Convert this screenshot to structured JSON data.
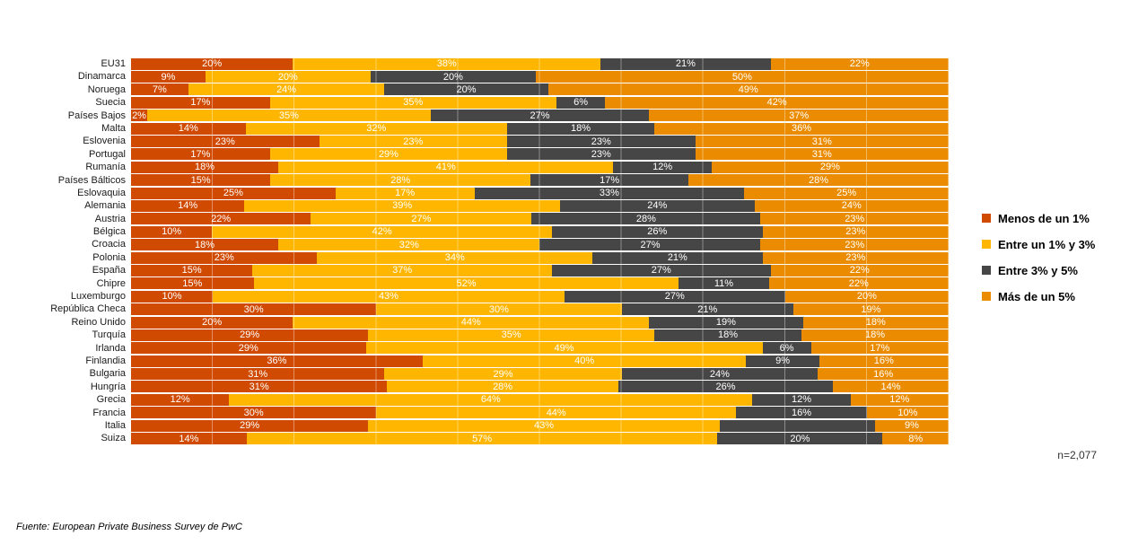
{
  "chart_data": {
    "type": "bar",
    "orientation": "horizontal-stacked-100",
    "title": "",
    "xlabel": "",
    "ylabel": "",
    "grid": "faint vertical gridlines every 10%",
    "legend_position": "right",
    "series_names": [
      "Menos de un 1%",
      "Entre un 1% y 3%",
      "Entre 3% y 5%",
      "Más de un 5%"
    ],
    "colors": [
      "#D04A02",
      "#FFB600",
      "#464646",
      "#EB8C00"
    ],
    "rows": [
      {
        "country": "EU31",
        "values": [
          20,
          38,
          21,
          22
        ]
      },
      {
        "country": "Dinamarca",
        "values": [
          9,
          20,
          20,
          50
        ]
      },
      {
        "country": "Noruega",
        "values": [
          7,
          24,
          20,
          49
        ]
      },
      {
        "country": "Suecia",
        "values": [
          17,
          35,
          6,
          42
        ]
      },
      {
        "country": "Países Bajos",
        "values": [
          2,
          35,
          27,
          37
        ]
      },
      {
        "country": "Malta",
        "values": [
          14,
          32,
          18,
          36
        ]
      },
      {
        "country": "Eslovenia",
        "values": [
          23,
          23,
          23,
          31
        ]
      },
      {
        "country": "Portugal",
        "values": [
          17,
          29,
          23,
          31
        ]
      },
      {
        "country": "Rumanía",
        "values": [
          18,
          41,
          12,
          29
        ]
      },
      {
        "country": "Países Bálticos",
        "values": [
          15,
          28,
          17,
          28
        ]
      },
      {
        "country": "Eslovaquia",
        "values": [
          25,
          17,
          33,
          25
        ]
      },
      {
        "country": "Alemania",
        "values": [
          14,
          39,
          24,
          24
        ]
      },
      {
        "country": "Austria",
        "values": [
          22,
          27,
          28,
          23
        ]
      },
      {
        "country": "Bélgica",
        "values": [
          10,
          42,
          26,
          23
        ]
      },
      {
        "country": "Croacia",
        "values": [
          18,
          32,
          27,
          23
        ]
      },
      {
        "country": "Polonia",
        "values": [
          23,
          34,
          21,
          23
        ]
      },
      {
        "country": "España",
        "values": [
          15,
          37,
          27,
          22
        ]
      },
      {
        "country": "Chipre",
        "values": [
          15,
          52,
          11,
          22
        ]
      },
      {
        "country": "Luxemburgo",
        "values": [
          10,
          43,
          27,
          20
        ]
      },
      {
        "country": "República Checa",
        "values": [
          30,
          30,
          21,
          19
        ]
      },
      {
        "country": "Reino Unido",
        "values": [
          20,
          44,
          19,
          18
        ]
      },
      {
        "country": "Turquía",
        "values": [
          29,
          35,
          18,
          18
        ]
      },
      {
        "country": "Irlanda",
        "values": [
          29,
          49,
          6,
          17
        ]
      },
      {
        "country": "Finlandia",
        "values": [
          36,
          40,
          9,
          16
        ]
      },
      {
        "country": "Bulgaria",
        "values": [
          31,
          29,
          24,
          16
        ]
      },
      {
        "country": "Hungría",
        "values": [
          31,
          28,
          26,
          14
        ]
      },
      {
        "country": "Grecia",
        "values": [
          12,
          64,
          12,
          12
        ]
      },
      {
        "country": "Francia",
        "values": [
          30,
          44,
          16,
          10
        ]
      },
      {
        "country": "Italia",
        "values": [
          29,
          43,
          19,
          9
        ],
        "unlabeled": [
          2
        ]
      },
      {
        "country": "Suiza",
        "values": [
          14,
          57,
          20,
          8
        ]
      }
    ]
  },
  "footer": {
    "sample_size": "n=2,077",
    "source": "Fuente: European Private Business Survey de PwC"
  }
}
